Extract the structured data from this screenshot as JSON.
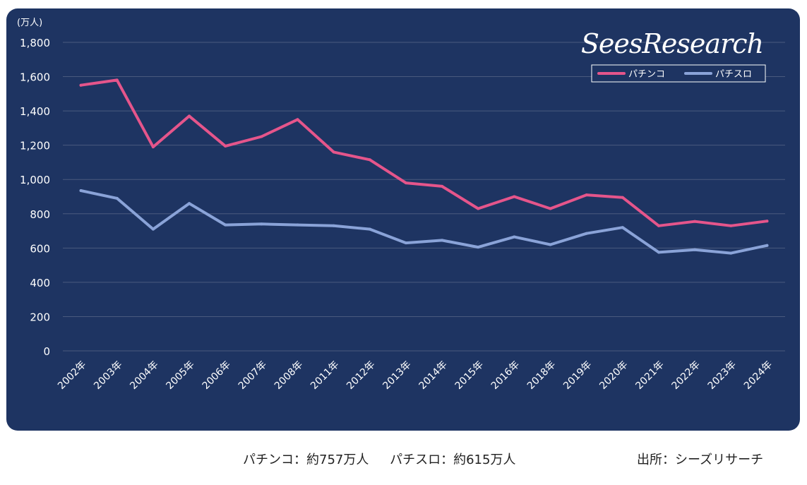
{
  "chart_data": {
    "type": "line",
    "unit_label": "(万人)",
    "brand": "SeesResearch",
    "categories": [
      "2002年",
      "2003年",
      "2004年",
      "2005年",
      "2006年",
      "2007年",
      "2008年",
      "2011年",
      "2012年",
      "2013年",
      "2014年",
      "2015年",
      "2016年",
      "2018年",
      "2019年",
      "2020年",
      "2021年",
      "2022年",
      "2023年",
      "2024年"
    ],
    "series": [
      {
        "name": "パチンコ",
        "color": "#e5558b",
        "values": [
          1550,
          1580,
          1190,
          1370,
          1195,
          1250,
          1350,
          1160,
          1115,
          980,
          960,
          830,
          900,
          830,
          910,
          895,
          730,
          755,
          730,
          757
        ]
      },
      {
        "name": "パチスロ",
        "color": "#8aa3d8",
        "values": [
          935,
          890,
          710,
          860,
          735,
          740,
          735,
          730,
          710,
          630,
          645,
          605,
          665,
          620,
          685,
          720,
          575,
          590,
          570,
          615
        ]
      }
    ],
    "y_ticks": [
      "0",
      "200",
      "400",
      "600",
      "800",
      "1,000",
      "1,200",
      "1,400",
      "1,600",
      "1,800"
    ],
    "ylim": [
      0,
      1800
    ],
    "grid": true,
    "legend_position": "top-right"
  },
  "footer": {
    "summary_pachinko": "パチンコ：約757万人",
    "summary_pachislot": "パチスロ：約615万人",
    "source": "出所：シーズリサーチ"
  }
}
